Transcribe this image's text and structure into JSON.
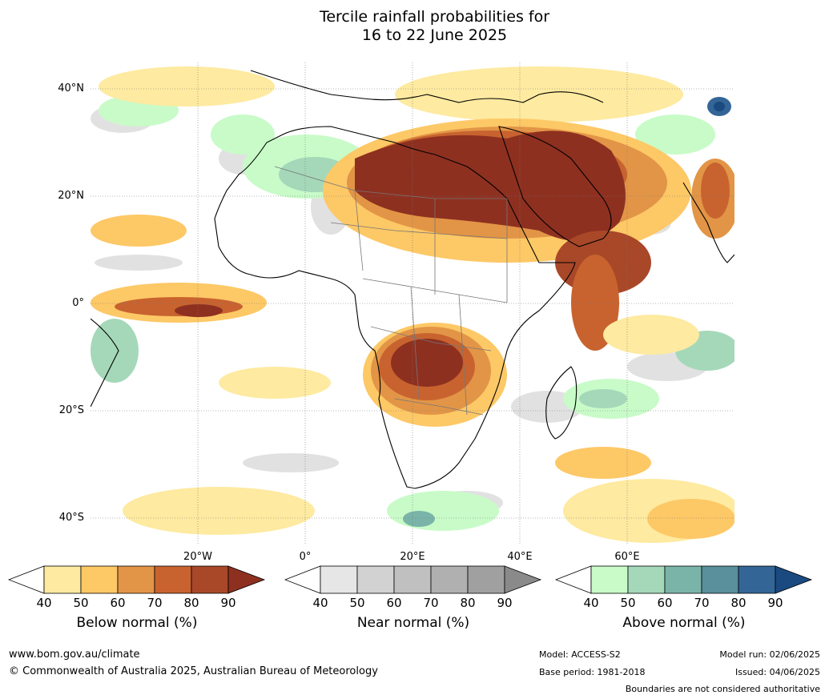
{
  "title": {
    "line1": "Tercile rainfall probabilities for",
    "line2": "16 to 22 June 2025"
  },
  "map": {
    "lat_labels": [
      "40°N",
      "20°N",
      "0°",
      "20°S",
      "40°S"
    ],
    "lon_labels": [
      "20°W",
      "0°",
      "20°E",
      "40°E",
      "60°E"
    ]
  },
  "colorbars": [
    {
      "name": "below",
      "label": "Below normal (%)",
      "ticks": [
        "40",
        "50",
        "60",
        "70",
        "80",
        "90"
      ],
      "colors": [
        "#ffffff",
        "#feeaa0",
        "#fdc866",
        "#e29546",
        "#c8632f",
        "#a84828",
        "#8e3020"
      ]
    },
    {
      "name": "near",
      "label": "Near normal (%)",
      "ticks": [
        "40",
        "50",
        "60",
        "70",
        "80",
        "90"
      ],
      "colors": [
        "#ffffff",
        "#e6e6e6",
        "#d2d2d2",
        "#c0c0c0",
        "#b0b0b0",
        "#a0a0a0",
        "#8a8a8a"
      ]
    },
    {
      "name": "above",
      "label": "Above normal (%)",
      "ticks": [
        "40",
        "50",
        "60",
        "70",
        "80",
        "90"
      ],
      "colors": [
        "#ffffff",
        "#c8fbc8",
        "#a4d8b9",
        "#7ab4a8",
        "#5a8f9c",
        "#336696",
        "#1a4a80"
      ]
    }
  ],
  "footer": {
    "website": "www.bom.gov.au/climate",
    "copyright": "© Commonwealth of Australia 2025, Australian Bureau of Meteorology",
    "model": "Model: ACCESS-S2",
    "base_period": "Base period: 1981-2018",
    "model_run": "Model run: 02/06/2025",
    "issued": "Issued: 04/06/2025",
    "boundaries": "Boundaries are not considered authoritative"
  }
}
